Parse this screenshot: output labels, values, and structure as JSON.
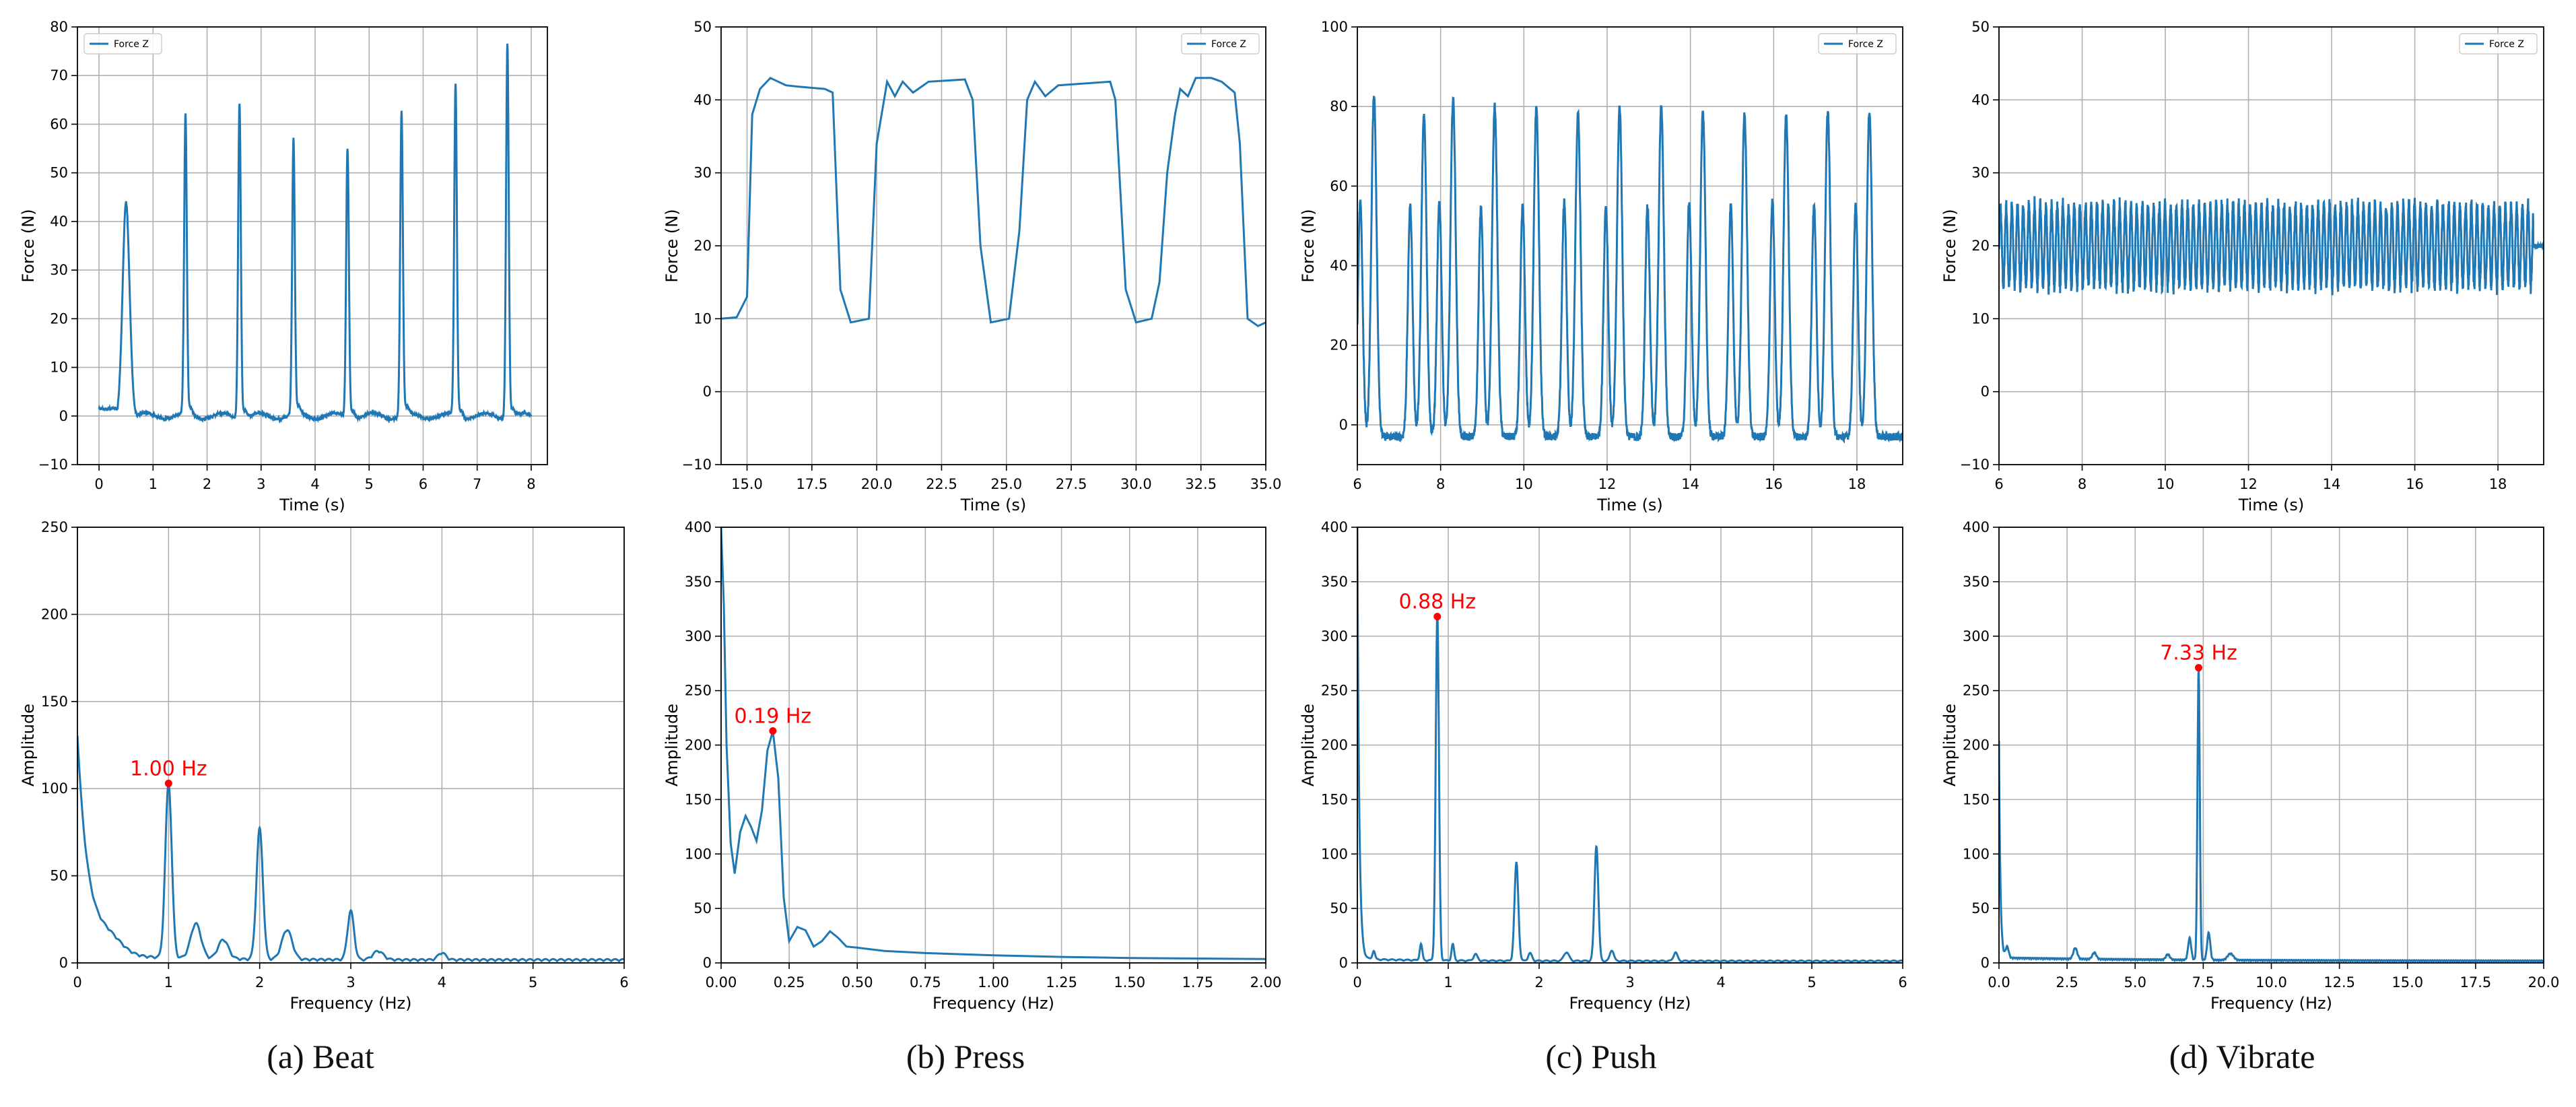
{
  "captions": {
    "a": "(a) Beat",
    "b": "(b) Press",
    "c": "(c) Push",
    "d": "(d) Vibrate"
  },
  "colors": {
    "line": "#1f77b4",
    "peak": "#ff0000",
    "grid": "#b0b0b0",
    "axis": "#000000"
  },
  "chart_data": [
    {
      "id": "a-time",
      "type": "line",
      "xlabel": "Time (s)",
      "ylabel": "Force (N)",
      "xlim": [
        -0.4,
        8.3
      ],
      "ylim": [
        -10,
        80
      ],
      "xticks": [
        0,
        1,
        2,
        3,
        4,
        5,
        6,
        7,
        8
      ],
      "xtick_labels": [
        "0",
        "1",
        "2",
        "3",
        "4",
        "5",
        "6",
        "7",
        "8"
      ],
      "yticks": [
        -10,
        0,
        10,
        20,
        30,
        40,
        50,
        60,
        70,
        80
      ],
      "ytick_labels": [
        "−10",
        "0",
        "10",
        "20",
        "30",
        "40",
        "50",
        "60",
        "70",
        "80"
      ],
      "grid": true,
      "legend": {
        "position": "top-left",
        "entries": [
          "Force Z"
        ]
      },
      "series": [
        {
          "name": "Force Z",
          "kind": "pulses",
          "baseline": 0,
          "pulses": [
            [
              0.5,
              44.5,
              0.09
            ],
            [
              1.6,
              61.7,
              0.035
            ],
            [
              2.6,
              64.8,
              0.035
            ],
            [
              3.6,
              56.5,
              0.035
            ],
            [
              4.6,
              55.2,
              0.035
            ],
            [
              5.6,
              62.6,
              0.035
            ],
            [
              6.6,
              68,
              0.035
            ],
            [
              7.56,
              77,
              0.035
            ]
          ],
          "x_range": [
            0,
            8
          ]
        }
      ]
    },
    {
      "id": "b-time",
      "type": "line",
      "xlabel": "Time (s)",
      "ylabel": "Force (N)",
      "xlim": [
        14,
        35
      ],
      "ylim": [
        -10,
        50
      ],
      "xticks": [
        15,
        17.5,
        20,
        22.5,
        25,
        27.5,
        30,
        32.5,
        35
      ],
      "xtick_labels": [
        "15.0",
        "17.5",
        "20.0",
        "22.5",
        "25.0",
        "27.5",
        "30.0",
        "32.5",
        "35.0"
      ],
      "yticks": [
        -10,
        0,
        10,
        20,
        30,
        40,
        50
      ],
      "ytick_labels": [
        "−10",
        "0",
        "10",
        "20",
        "30",
        "40",
        "50"
      ],
      "grid": true,
      "legend": {
        "position": "top-right",
        "entries": [
          "Force Z"
        ]
      },
      "series": [
        {
          "name": "Force Z",
          "kind": "points",
          "points": [
            [
              14,
              10
            ],
            [
              14.6,
              10.2
            ],
            [
              15,
              13
            ],
            [
              15.2,
              38
            ],
            [
              15.5,
              41.5
            ],
            [
              15.9,
              43
            ],
            [
              16.5,
              42
            ],
            [
              17,
              41.8
            ],
            [
              18,
              41.5
            ],
            [
              18.3,
              41
            ],
            [
              18.6,
              14
            ],
            [
              19,
              9.5
            ],
            [
              19.7,
              10
            ],
            [
              20,
              34
            ],
            [
              20.4,
              42.5
            ],
            [
              20.7,
              40.5
            ],
            [
              21,
              42.5
            ],
            [
              21.4,
              41
            ],
            [
              22,
              42.5
            ],
            [
              23.4,
              42.8
            ],
            [
              23.7,
              40
            ],
            [
              24,
              20
            ],
            [
              24.4,
              9.5
            ],
            [
              25.1,
              10
            ],
            [
              25.5,
              22
            ],
            [
              25.8,
              40
            ],
            [
              26.1,
              42.5
            ],
            [
              26.5,
              40.5
            ],
            [
              27,
              42
            ],
            [
              29,
              42.5
            ],
            [
              29.2,
              40
            ],
            [
              29.6,
              14
            ],
            [
              30,
              9.5
            ],
            [
              30.6,
              10
            ],
            [
              30.9,
              15
            ],
            [
              31.2,
              30
            ],
            [
              31.5,
              38
            ],
            [
              31.7,
              41.5
            ],
            [
              32,
              40.5
            ],
            [
              32.3,
              43
            ],
            [
              32.9,
              43
            ],
            [
              33.3,
              42.5
            ],
            [
              33.8,
              41
            ],
            [
              34,
              34
            ],
            [
              34.3,
              10
            ],
            [
              34.7,
              9
            ],
            [
              35,
              9.5
            ]
          ]
        }
      ]
    },
    {
      "id": "c-time",
      "type": "line",
      "xlabel": "Time (s)",
      "ylabel": "Force (N)",
      "xlim": [
        6,
        19.1
      ],
      "ylim": [
        -10,
        100
      ],
      "xticks": [
        6,
        8,
        10,
        12,
        14,
        16,
        18
      ],
      "xtick_labels": [
        "6",
        "8",
        "10",
        "12",
        "14",
        "16",
        "18"
      ],
      "yticks": [
        0,
        20,
        40,
        60,
        80,
        100
      ],
      "ytick_labels": [
        "0",
        "20",
        "40",
        "60",
        "80",
        "100"
      ],
      "grid": true,
      "legend": {
        "position": "top-right",
        "entries": [
          "Force Z"
        ]
      },
      "series": [
        {
          "name": "Force Z",
          "kind": "double-pulses",
          "baseline": -3,
          "pulses": [
            [
              6.4,
              83,
              56
            ],
            [
              7.6,
              78,
              55
            ],
            [
              8.3,
              82,
              56
            ],
            [
              9.3,
              80,
              55
            ],
            [
              10.3,
              80,
              55
            ],
            [
              11.3,
              78,
              56
            ],
            [
              12.3,
              80,
              55
            ],
            [
              13.3,
              80,
              55
            ],
            [
              14.3,
              79,
              56
            ],
            [
              15.3,
              78,
              55
            ],
            [
              16.3,
              78,
              56
            ],
            [
              17.3,
              79,
              55
            ],
            [
              18.3,
              79,
              55
            ]
          ],
          "x_range": [
            6,
            19.1
          ]
        }
      ]
    },
    {
      "id": "d-time",
      "type": "line",
      "xlabel": "Time (s)",
      "ylabel": "Force (N)",
      "xlim": [
        6,
        19.1
      ],
      "ylim": [
        -10,
        50
      ],
      "xticks": [
        6,
        8,
        10,
        12,
        14,
        16,
        18
      ],
      "xtick_labels": [
        "6",
        "8",
        "10",
        "12",
        "14",
        "16",
        "18"
      ],
      "yticks": [
        -10,
        0,
        10,
        20,
        30,
        40,
        50
      ],
      "ytick_labels": [
        "−10",
        "0",
        "10",
        "20",
        "30",
        "40",
        "50"
      ],
      "grid": true,
      "legend": {
        "position": "top-right",
        "entries": [
          "Force Z"
        ]
      },
      "series": [
        {
          "name": "Force Z",
          "kind": "oscillation",
          "center": 20,
          "amplitude": 5.5,
          "frequency": 7.33,
          "x_range": [
            6,
            19.1
          ]
        }
      ]
    },
    {
      "id": "a-freq",
      "type": "line",
      "xlabel": "Frequency (Hz)",
      "ylabel": "Amplitude",
      "xlim": [
        0,
        6
      ],
      "ylim": [
        0,
        250
      ],
      "xticks": [
        0,
        1,
        2,
        3,
        4,
        5,
        6
      ],
      "xtick_labels": [
        "0",
        "1",
        "2",
        "3",
        "4",
        "5",
        "6"
      ],
      "yticks": [
        0,
        50,
        100,
        150,
        200,
        250
      ],
      "ytick_labels": [
        "0",
        "50",
        "100",
        "150",
        "200",
        "250"
      ],
      "grid": true,
      "peak": {
        "x": 1.0,
        "y": 103,
        "label": "1.00 Hz"
      },
      "series": [
        {
          "kind": "spectrum",
          "start": [
            0,
            125
          ],
          "decay": 0.12,
          "floor": 4,
          "peaks": [
            [
              0.35,
              8,
              0.2
            ],
            [
              1.0,
              100,
              0.05
            ],
            [
              1.3,
              20,
              0.08
            ],
            [
              1.6,
              11,
              0.08
            ],
            [
              2.0,
              75,
              0.05
            ],
            [
              2.3,
              17,
              0.08
            ],
            [
              3.0,
              28,
              0.05
            ],
            [
              3.3,
              5,
              0.08
            ],
            [
              4.0,
              4,
              0.06
            ]
          ],
          "floor_decay": 1.2
        }
      ]
    },
    {
      "id": "b-freq",
      "type": "line",
      "xlabel": "Frequency (Hz)",
      "ylabel": "Amplitude",
      "xlim": [
        0,
        2
      ],
      "ylim": [
        0,
        400
      ],
      "xticks": [
        0,
        0.25,
        0.5,
        0.75,
        1.0,
        1.25,
        1.5,
        1.75,
        2.0
      ],
      "xtick_labels": [
        "0.00",
        "0.25",
        "0.50",
        "0.75",
        "1.00",
        "1.25",
        "1.50",
        "1.75",
        "2.00"
      ],
      "yticks": [
        0,
        50,
        100,
        150,
        200,
        250,
        300,
        350,
        400
      ],
      "ytick_labels": [
        "0",
        "50",
        "100",
        "150",
        "200",
        "250",
        "300",
        "350",
        "400"
      ],
      "grid": true,
      "peak": {
        "x": 0.19,
        "y": 213,
        "label": "0.19 Hz"
      },
      "series": [
        {
          "kind": "points",
          "points": [
            [
              0,
              400
            ],
            [
              0.01,
              330
            ],
            [
              0.02,
              200
            ],
            [
              0.035,
              110
            ],
            [
              0.05,
              82
            ],
            [
              0.07,
              120
            ],
            [
              0.09,
              135
            ],
            [
              0.11,
              125
            ],
            [
              0.13,
              112
            ],
            [
              0.15,
              140
            ],
            [
              0.17,
              195
            ],
            [
              0.19,
              213
            ],
            [
              0.21,
              170
            ],
            [
              0.23,
              60
            ],
            [
              0.25,
              20
            ],
            [
              0.28,
              33
            ],
            [
              0.31,
              30
            ],
            [
              0.34,
              15
            ],
            [
              0.37,
              20
            ],
            [
              0.4,
              29
            ],
            [
              0.43,
              23
            ],
            [
              0.46,
              15
            ],
            [
              0.5,
              14
            ],
            [
              0.6,
              11
            ],
            [
              0.75,
              9
            ],
            [
              1.0,
              7
            ],
            [
              1.25,
              5.5
            ],
            [
              1.5,
              4.5
            ],
            [
              1.75,
              4
            ],
            [
              2.0,
              3.5
            ]
          ]
        }
      ]
    },
    {
      "id": "c-freq",
      "type": "line",
      "xlabel": "Frequency (Hz)",
      "ylabel": "Amplitude",
      "xlim": [
        0,
        6
      ],
      "ylim": [
        0,
        400
      ],
      "xticks": [
        0,
        1,
        2,
        3,
        4,
        5,
        6
      ],
      "xtick_labels": [
        "0",
        "1",
        "2",
        "3",
        "4",
        "5",
        "6"
      ],
      "yticks": [
        0,
        50,
        100,
        150,
        200,
        250,
        300,
        350,
        400
      ],
      "ytick_labels": [
        "0",
        "50",
        "100",
        "150",
        "200",
        "250",
        "300",
        "350",
        "400"
      ],
      "grid": true,
      "peak": {
        "x": 0.88,
        "y": 318,
        "label": "0.88 Hz"
      },
      "series": [
        {
          "kind": "spectrum",
          "start": [
            0,
            400
          ],
          "decay": 0.02,
          "floor": 2,
          "peaks": [
            [
              0.18,
              8,
              0.02
            ],
            [
              0.7,
              15,
              0.02
            ],
            [
              0.88,
              318,
              0.025
            ],
            [
              1.05,
              15,
              0.02
            ],
            [
              1.3,
              6,
              0.03
            ],
            [
              1.75,
              90,
              0.03
            ],
            [
              1.9,
              7,
              0.03
            ],
            [
              2.3,
              8,
              0.04
            ],
            [
              2.63,
              106,
              0.03
            ],
            [
              2.8,
              10,
              0.03
            ],
            [
              3.5,
              8,
              0.03
            ]
          ],
          "floor_decay": 1.5
        }
      ]
    },
    {
      "id": "d-freq",
      "type": "line",
      "xlabel": "Frequency (Hz)",
      "ylabel": "Amplitude",
      "xlim": [
        0,
        20
      ],
      "ylim": [
        0,
        400
      ],
      "xticks": [
        0,
        2.5,
        5,
        7.5,
        10,
        12.5,
        15,
        17.5,
        20
      ],
      "xtick_labels": [
        "0.0",
        "2.5",
        "5.0",
        "7.5",
        "10.0",
        "12.5",
        "15.0",
        "17.5",
        "20.0"
      ],
      "yticks": [
        0,
        50,
        100,
        150,
        200,
        250,
        300,
        350,
        400
      ],
      "ytick_labels": [
        "0",
        "50",
        "100",
        "150",
        "200",
        "250",
        "300",
        "350",
        "400"
      ],
      "grid": true,
      "peak": {
        "x": 7.33,
        "y": 271,
        "label": "7.33 Hz"
      },
      "series": [
        {
          "kind": "spectrum",
          "start": [
            0,
            200
          ],
          "decay": 0.05,
          "floor": 3,
          "peaks": [
            [
              0.3,
              10,
              0.08
            ],
            [
              2.8,
              10,
              0.1
            ],
            [
              3.5,
              6,
              0.1
            ],
            [
              6.2,
              5,
              0.1
            ],
            [
              7.0,
              20,
              0.08
            ],
            [
              7.33,
              268,
              0.06
            ],
            [
              7.7,
              25,
              0.08
            ],
            [
              8.5,
              6,
              0.15
            ]
          ],
          "floor_decay": 0.15
        }
      ]
    }
  ]
}
